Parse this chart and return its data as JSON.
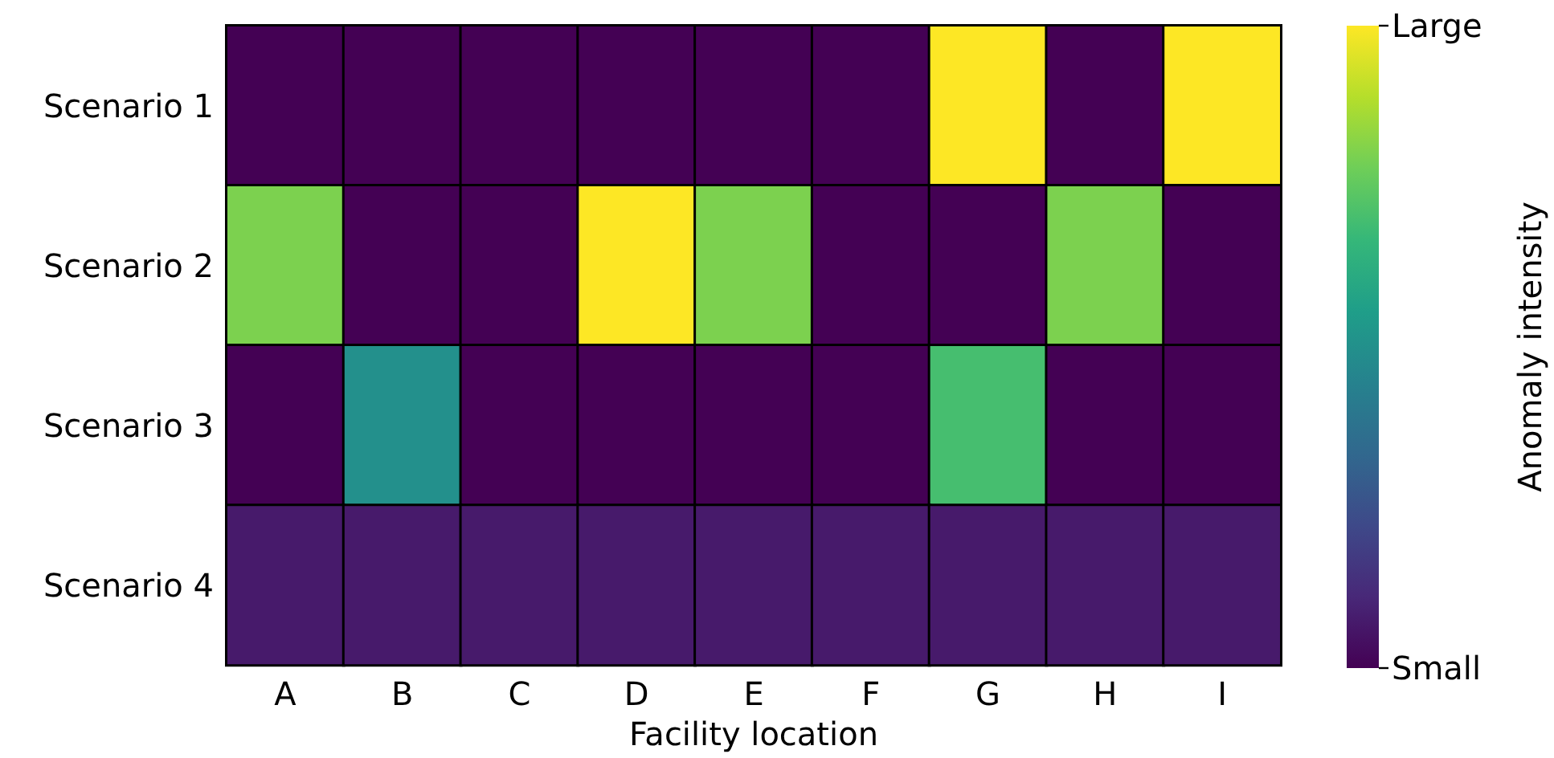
{
  "chart_data": {
    "type": "heatmap",
    "xlabel": "Facility location",
    "clabel": "Anomaly intensity",
    "categories": [
      "A",
      "B",
      "C",
      "D",
      "E",
      "F",
      "G",
      "H",
      "I"
    ],
    "y_categories": [
      "Scenario 1",
      "Scenario 2",
      "Scenario 3",
      "Scenario 4"
    ],
    "cells": [
      [
        0,
        0,
        0,
        0,
        0,
        0,
        1,
        0,
        1
      ],
      [
        0.8,
        0,
        0,
        1,
        0.8,
        0,
        0,
        0.8,
        0
      ],
      [
        0,
        0.5,
        0,
        0,
        0,
        0,
        0.7,
        0,
        0
      ],
      [
        0.07,
        0.07,
        0.07,
        0.07,
        0.07,
        0.07,
        0.07,
        0.07,
        0.07
      ]
    ],
    "clim": [
      0,
      1
    ],
    "cticks": [
      {
        "value": 0,
        "label": "Small"
      },
      {
        "value": 1,
        "label": "Large"
      }
    ]
  }
}
